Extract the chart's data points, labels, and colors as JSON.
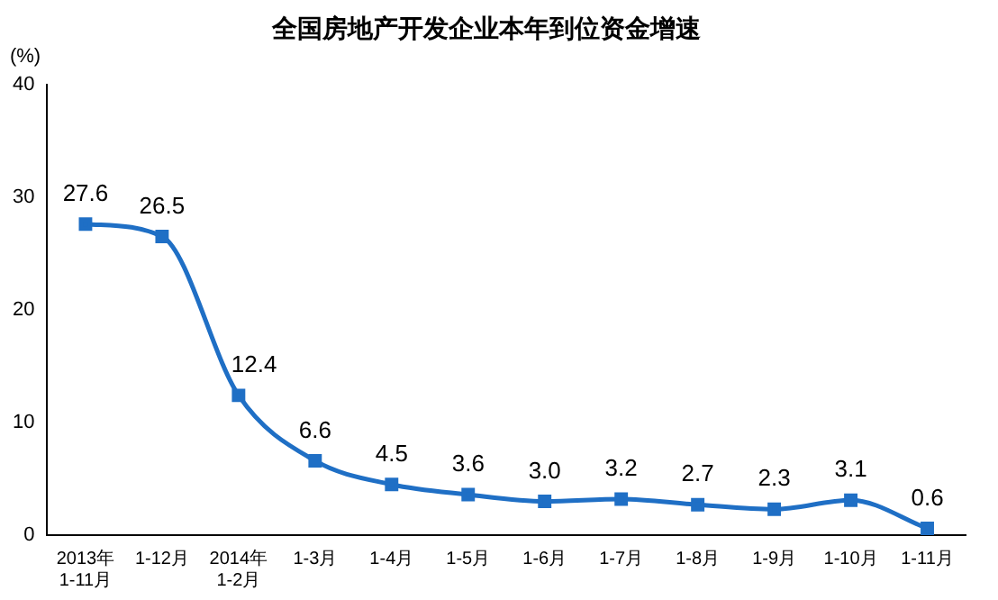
{
  "chart_data": {
    "type": "line",
    "title": "全国房地产开发企业本年到位资金增速",
    "ylabel": "(%)",
    "categories": [
      "2013年\n1-11月",
      "1-12月",
      "2014年\n1-2月",
      "1-3月",
      "1-4月",
      "1-5月",
      "1-6月",
      "1-7月",
      "1-8月",
      "1-9月",
      "1-10月",
      "1-11月"
    ],
    "series": [
      {
        "color": "#1f6fc5",
        "values": [
          27.6,
          26.5,
          12.4,
          6.6,
          4.5,
          3.6,
          3.0,
          3.2,
          2.7,
          2.3,
          3.1,
          0.6
        ],
        "value_labels": [
          "27.6",
          "26.5",
          "12.4",
          "6.6",
          "4.5",
          "3.6",
          "3.0",
          "3.2",
          "2.7",
          "2.3",
          "3.1",
          "0.6"
        ]
      }
    ],
    "ylim": [
      0,
      40
    ],
    "yticks": [
      0,
      10,
      20,
      30,
      40
    ],
    "grid": false,
    "legend": false,
    "marker": "square"
  }
}
